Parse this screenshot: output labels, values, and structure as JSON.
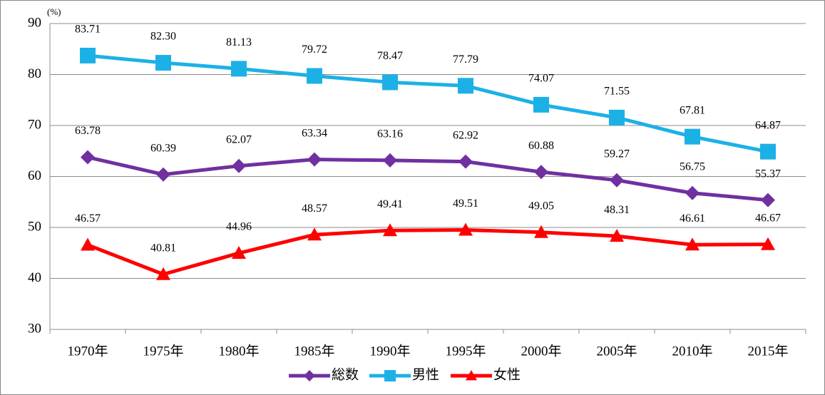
{
  "chart_data": {
    "type": "line",
    "y_unit": "(%)",
    "categories": [
      "1970年",
      "1975年",
      "1980年",
      "1985年",
      "1990年",
      "1995年",
      "2000年",
      "2005年",
      "2010年",
      "2015年"
    ],
    "series": [
      {
        "name": "総数",
        "color": "#7030a0",
        "marker": "diamond",
        "values": [
          63.78,
          60.39,
          62.07,
          63.34,
          63.16,
          62.92,
          60.88,
          59.27,
          56.75,
          55.37
        ],
        "value_labels": [
          "63.78",
          "60.39",
          "62.07",
          "63.34",
          "63.16",
          "62.92",
          "60.88",
          "59.27",
          "56.75",
          "55.37"
        ]
      },
      {
        "name": "男性",
        "color": "#1cb1e6",
        "marker": "square",
        "values": [
          83.71,
          82.3,
          81.13,
          79.72,
          78.47,
          77.79,
          74.07,
          71.55,
          67.81,
          64.87
        ],
        "value_labels": [
          "83.71",
          "82.30",
          "81.13",
          "79.72",
          "78.47",
          "77.79",
          "74.07",
          "71.55",
          "67.81",
          "64.87"
        ]
      },
      {
        "name": "女性",
        "color": "#ff0000",
        "marker": "triangle",
        "values": [
          46.57,
          40.81,
          44.96,
          48.57,
          49.41,
          49.51,
          49.05,
          48.31,
          46.61,
          46.67
        ],
        "value_labels": [
          "46.57",
          "40.81",
          "44.96",
          "48.57",
          "49.41",
          "49.51",
          "49.05",
          "48.31",
          "46.61",
          "46.67"
        ]
      }
    ],
    "ylim": [
      30,
      90
    ],
    "yticks": [
      30,
      40,
      50,
      60,
      70,
      80,
      90
    ],
    "grid": true,
    "legend": "bottom"
  }
}
